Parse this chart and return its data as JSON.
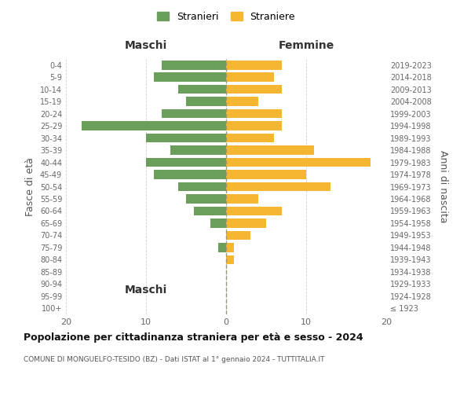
{
  "age_groups": [
    "100+",
    "95-99",
    "90-94",
    "85-89",
    "80-84",
    "75-79",
    "70-74",
    "65-69",
    "60-64",
    "55-59",
    "50-54",
    "45-49",
    "40-44",
    "35-39",
    "30-34",
    "25-29",
    "20-24",
    "15-19",
    "10-14",
    "5-9",
    "0-4"
  ],
  "birth_years": [
    "≤ 1923",
    "1924-1928",
    "1929-1933",
    "1934-1938",
    "1939-1943",
    "1944-1948",
    "1949-1953",
    "1954-1958",
    "1959-1963",
    "1964-1968",
    "1969-1973",
    "1974-1978",
    "1979-1983",
    "1984-1988",
    "1989-1993",
    "1994-1998",
    "1999-2003",
    "2004-2008",
    "2009-2013",
    "2014-2018",
    "2019-2023"
  ],
  "maschi": [
    0,
    0,
    0,
    0,
    0,
    1,
    0,
    2,
    4,
    5,
    6,
    9,
    10,
    7,
    10,
    18,
    8,
    5,
    6,
    9,
    8
  ],
  "femmine": [
    0,
    0,
    0,
    0,
    1,
    1,
    3,
    5,
    7,
    4,
    13,
    10,
    18,
    11,
    6,
    7,
    7,
    4,
    7,
    6,
    7
  ],
  "color_maschi": "#6a9e5a",
  "color_femmine": "#f5b731",
  "background_color": "#ffffff",
  "grid_color": "#cccccc",
  "title": "Popolazione per cittadinanza straniera per età e sesso - 2024",
  "subtitle": "COMUNE DI MONGUELFO-TESIDO (BZ) - Dati ISTAT al 1° gennaio 2024 - TUTTITALIA.IT",
  "left_header": "Maschi",
  "right_header": "Femmine",
  "left_ylabel": "Fasce di età",
  "right_ylabel": "Anni di nascita",
  "xlim": 20,
  "legend_stranieri": "Stranieri",
  "legend_straniere": "Straniere"
}
